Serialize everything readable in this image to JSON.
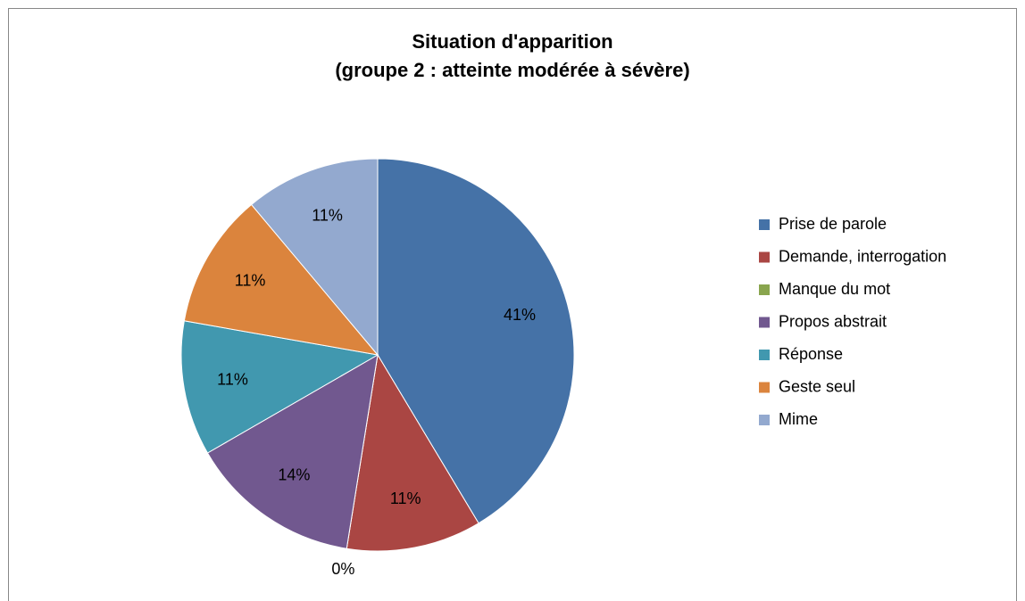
{
  "chart_data": {
    "type": "pie",
    "title": [
      "Situation d'apparition",
      "(groupe 2 : atteinte modérée à sévère)"
    ],
    "categories": [
      "Prise de parole",
      "Demande, interrogation",
      "Manque du mot",
      "Propos abstrait",
      "Réponse",
      "Geste seul",
      "Mime"
    ],
    "values": [
      41,
      11,
      0,
      14,
      11,
      11,
      11
    ],
    "value_labels": [
      "41%",
      "11%",
      "0%",
      "14%",
      "11%",
      "11%",
      "11%"
    ],
    "colors": [
      "#4572A7",
      "#AA4643",
      "#89A54E",
      "#71588F",
      "#4198AF",
      "#DB843D",
      "#93A9CF"
    ],
    "legend": "right"
  }
}
